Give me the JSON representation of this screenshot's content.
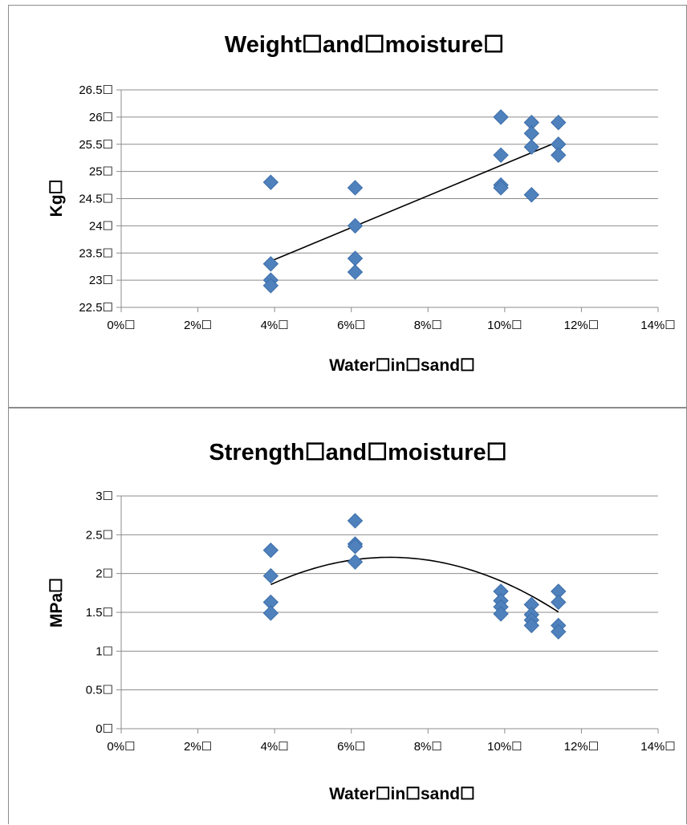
{
  "chart_data": [
    {
      "type": "scatter",
      "title": "Weight☐and☐moisture☐",
      "xlabel": "Water☐in☐sand☐",
      "ylabel": "Kg☐",
      "xlim": [
        0,
        14
      ],
      "ylim": [
        22.5,
        26.5
      ],
      "x_ticks": [
        "0%☐",
        "2%☐",
        "4%☐",
        "6%☐",
        "8%☐",
        "10%☐",
        "12%☐",
        "14%☐"
      ],
      "y_ticks": [
        "22.5☐",
        "23☐",
        "23.5☐",
        "24☐",
        "24.5☐",
        "25☐",
        "25.5☐",
        "26☐",
        "26.5☐"
      ],
      "grid": true,
      "marker_color": "#4f81bd",
      "points": [
        {
          "x": 3.9,
          "y": 24.8
        },
        {
          "x": 3.9,
          "y": 23.3
        },
        {
          "x": 3.9,
          "y": 23.0
        },
        {
          "x": 3.9,
          "y": 22.9
        },
        {
          "x": 6.1,
          "y": 24.7
        },
        {
          "x": 6.1,
          "y": 24.0
        },
        {
          "x": 6.1,
          "y": 23.4
        },
        {
          "x": 6.1,
          "y": 23.15
        },
        {
          "x": 9.9,
          "y": 26.0
        },
        {
          "x": 9.9,
          "y": 25.3
        },
        {
          "x": 9.9,
          "y": 24.75
        },
        {
          "x": 9.9,
          "y": 24.7
        },
        {
          "x": 10.7,
          "y": 25.9
        },
        {
          "x": 10.7,
          "y": 25.7
        },
        {
          "x": 10.7,
          "y": 25.45
        },
        {
          "x": 10.7,
          "y": 24.57
        },
        {
          "x": 11.4,
          "y": 25.9
        },
        {
          "x": 11.4,
          "y": 25.5
        },
        {
          "x": 11.4,
          "y": 25.3
        }
      ],
      "trendline": {
        "type": "linear",
        "x": [
          3.9,
          11.4
        ],
        "y": [
          23.35,
          25.55
        ]
      }
    },
    {
      "type": "scatter",
      "title": "Strength☐and☐moisture☐",
      "xlabel": "Water☐in☐sand☐",
      "ylabel": "MPa☐",
      "xlim": [
        0,
        14
      ],
      "ylim": [
        0,
        3
      ],
      "x_ticks": [
        "0%☐",
        "2%☐",
        "4%☐",
        "6%☐",
        "8%☐",
        "10%☐",
        "12%☐",
        "14%☐"
      ],
      "y_ticks": [
        "0☐",
        "0.5☐",
        "1☐",
        "1.5☐",
        "2☐",
        "2.5☐",
        "3☐"
      ],
      "grid": true,
      "marker_color": "#4f81bd",
      "points": [
        {
          "x": 3.9,
          "y": 2.3
        },
        {
          "x": 3.9,
          "y": 1.97
        },
        {
          "x": 3.9,
          "y": 1.63
        },
        {
          "x": 3.9,
          "y": 1.49
        },
        {
          "x": 6.1,
          "y": 2.68
        },
        {
          "x": 6.1,
          "y": 2.38
        },
        {
          "x": 6.1,
          "y": 2.35
        },
        {
          "x": 6.1,
          "y": 2.15
        },
        {
          "x": 9.9,
          "y": 1.77
        },
        {
          "x": 9.9,
          "y": 1.65
        },
        {
          "x": 9.9,
          "y": 1.57
        },
        {
          "x": 9.9,
          "y": 1.48
        },
        {
          "x": 10.7,
          "y": 1.6
        },
        {
          "x": 10.7,
          "y": 1.47
        },
        {
          "x": 10.7,
          "y": 1.4
        },
        {
          "x": 10.7,
          "y": 1.33
        },
        {
          "x": 11.4,
          "y": 1.77
        },
        {
          "x": 11.4,
          "y": 1.63
        },
        {
          "x": 11.4,
          "y": 1.33
        },
        {
          "x": 11.4,
          "y": 1.25
        }
      ],
      "trendline": {
        "type": "polynomial",
        "order": 2,
        "x_range": [
          3.9,
          11.4
        ],
        "coefficients": [
          -0.0365,
          0.5113,
          0.4186
        ]
      }
    }
  ]
}
